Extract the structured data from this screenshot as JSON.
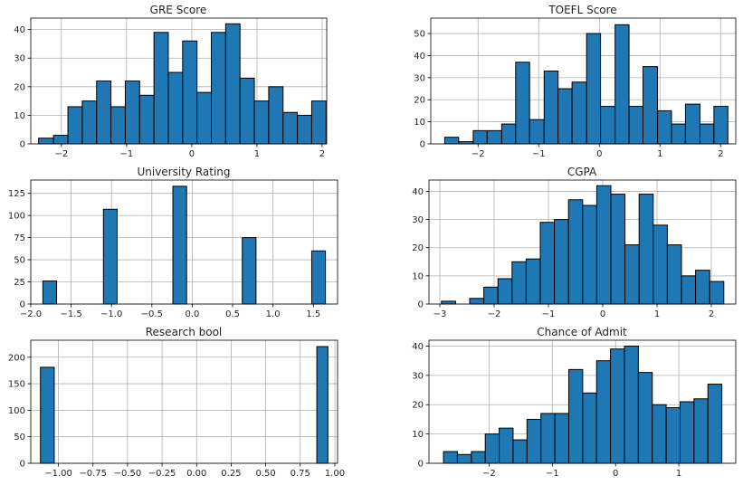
{
  "chart_data": [
    {
      "type": "bar",
      "title": "GRE Score",
      "bins": [
        [
          -2.35,
          -2.12
        ],
        [
          -2.12,
          -1.9
        ],
        [
          -1.9,
          -1.68
        ],
        [
          -1.68,
          -1.46
        ],
        [
          -1.46,
          -1.24
        ],
        [
          -1.24,
          -1.02
        ],
        [
          -1.02,
          -0.8
        ],
        [
          -0.8,
          -0.58
        ],
        [
          -0.58,
          -0.36
        ],
        [
          -0.36,
          -0.14
        ],
        [
          -0.14,
          0.08
        ],
        [
          0.08,
          0.3
        ],
        [
          0.3,
          0.52
        ],
        [
          0.52,
          0.74
        ],
        [
          0.74,
          0.96
        ],
        [
          0.96,
          1.18
        ],
        [
          1.18,
          1.4
        ],
        [
          1.4,
          1.62
        ],
        [
          1.62,
          1.84
        ],
        [
          1.84,
          2.06
        ]
      ],
      "values": [
        2,
        3,
        13,
        15,
        22,
        13,
        22,
        17,
        39,
        25,
        36,
        18,
        39,
        42,
        23,
        15,
        20,
        11,
        10,
        15
      ],
      "xlim": [
        -2.47,
        2.07
      ],
      "ylim": [
        0,
        44
      ],
      "xticks": [
        -2,
        -1,
        0,
        1,
        2
      ],
      "xtick_labels": [
        "−2",
        "−1",
        "0",
        "1",
        "2"
      ],
      "yticks": [
        0,
        10,
        20,
        30,
        40
      ],
      "grid": true,
      "color": "#1f77b4",
      "edgecolor": "#000000"
    },
    {
      "type": "bar",
      "title": "TOEFL Score",
      "bins": [
        [
          -2.55,
          -2.32
        ],
        [
          -2.32,
          -2.08
        ],
        [
          -2.08,
          -1.85
        ],
        [
          -1.85,
          -1.61
        ],
        [
          -1.61,
          -1.38
        ],
        [
          -1.38,
          -1.15
        ],
        [
          -1.15,
          -0.91
        ],
        [
          -0.91,
          -0.68
        ],
        [
          -0.68,
          -0.45
        ],
        [
          -0.45,
          -0.21
        ],
        [
          -0.21,
          0.02
        ],
        [
          0.02,
          0.26
        ],
        [
          0.26,
          0.49
        ],
        [
          0.49,
          0.72
        ],
        [
          0.72,
          0.96
        ],
        [
          0.96,
          1.19
        ],
        [
          1.19,
          1.42
        ],
        [
          1.42,
          1.66
        ],
        [
          1.66,
          1.89
        ],
        [
          1.89,
          2.12
        ]
      ],
      "values": [
        3,
        1,
        6,
        6,
        9,
        37,
        11,
        33,
        25,
        28,
        50,
        17,
        54,
        17,
        35,
        15,
        9,
        18,
        9,
        17
      ],
      "xlim": [
        -2.78,
        2.25
      ],
      "ylim": [
        0,
        57
      ],
      "xticks": [
        -2,
        -1,
        0,
        1,
        2
      ],
      "xtick_labels": [
        "−2",
        "−1",
        "0",
        "1",
        "2"
      ],
      "yticks": [
        0,
        10,
        20,
        30,
        40,
        50
      ],
      "grid": true,
      "color": "#1f77b4",
      "edgecolor": "#000000"
    },
    {
      "type": "bar",
      "title": "University Rating",
      "bins": [
        [
          -1.85,
          -1.68
        ],
        [
          -1.1,
          -0.93
        ],
        [
          -0.24,
          -0.07
        ],
        [
          0.62,
          0.79
        ],
        [
          1.48,
          1.65
        ]
      ],
      "values": [
        26,
        107,
        133,
        75,
        60
      ],
      "xlim": [
        -2.0,
        1.8
      ],
      "ylim": [
        0,
        140
      ],
      "xticks": [
        -2.0,
        -1.5,
        -1.0,
        -0.5,
        0.0,
        0.5,
        1.0,
        1.5
      ],
      "xtick_labels": [
        "−2.0",
        "−1.5",
        "−1.0",
        "−0.5",
        "0.0",
        "0.5",
        "1.0",
        "1.5"
      ],
      "yticks": [
        0,
        25,
        50,
        75,
        100,
        125
      ],
      "grid": true,
      "color": "#1f77b4",
      "edgecolor": "#000000"
    },
    {
      "type": "bar",
      "title": "CGPA",
      "bins": [
        [
          -2.97,
          -2.71
        ],
        [
          -2.71,
          -2.45
        ],
        [
          -2.45,
          -2.19
        ],
        [
          -2.19,
          -1.93
        ],
        [
          -1.93,
          -1.67
        ],
        [
          -1.67,
          -1.41
        ],
        [
          -1.41,
          -1.15
        ],
        [
          -1.15,
          -0.89
        ],
        [
          -0.89,
          -0.63
        ],
        [
          -0.63,
          -0.37
        ],
        [
          -0.37,
          -0.11
        ],
        [
          -0.11,
          0.15
        ],
        [
          0.15,
          0.41
        ],
        [
          0.41,
          0.67
        ],
        [
          0.67,
          0.93
        ],
        [
          0.93,
          1.19
        ],
        [
          1.19,
          1.45
        ],
        [
          1.45,
          1.71
        ],
        [
          1.71,
          1.97
        ],
        [
          1.97,
          2.23
        ]
      ],
      "values": [
        1,
        0,
        2,
        6,
        9,
        15,
        16,
        29,
        30,
        37,
        35,
        42,
        39,
        21,
        39,
        28,
        21,
        10,
        12,
        8
      ],
      "xlim": [
        -3.2,
        2.45
      ],
      "ylim": [
        0,
        44
      ],
      "xticks": [
        -3,
        -2,
        -1,
        0,
        1,
        2
      ],
      "xtick_labels": [
        "−3",
        "−2",
        "−1",
        "0",
        "1",
        "2"
      ],
      "yticks": [
        0,
        10,
        20,
        30,
        40
      ],
      "grid": true,
      "color": "#1f77b4",
      "edgecolor": "#000000"
    },
    {
      "type": "bar",
      "title": "Research bool",
      "bins": [
        [
          -1.13,
          -1.03
        ],
        [
          0.87,
          0.95
        ]
      ],
      "values": [
        181,
        220
      ],
      "xlim": [
        -1.2,
        1.02
      ],
      "ylim": [
        0,
        232
      ],
      "xticks": [
        -1.0,
        -0.75,
        -0.5,
        -0.25,
        0.0,
        0.25,
        0.5,
        0.75,
        1.0
      ],
      "xtick_labels": [
        "−1.00",
        "−0.75",
        "−0.50",
        "−0.25",
        "0.00",
        "0.25",
        "0.50",
        "0.75",
        "1.00"
      ],
      "yticks": [
        0,
        50,
        100,
        150,
        200
      ],
      "grid": true,
      "color": "#1f77b4",
      "edgecolor": "#000000"
    },
    {
      "type": "bar",
      "title": "Chance of Admit",
      "bins": [
        [
          -2.72,
          -2.5
        ],
        [
          -2.5,
          -2.28
        ],
        [
          -2.28,
          -2.06
        ],
        [
          -2.06,
          -1.84
        ],
        [
          -1.84,
          -1.62
        ],
        [
          -1.62,
          -1.4
        ],
        [
          -1.4,
          -1.18
        ],
        [
          -1.18,
          -0.96
        ],
        [
          -0.96,
          -0.74
        ],
        [
          -0.74,
          -0.52
        ],
        [
          -0.52,
          -0.3
        ],
        [
          -0.3,
          -0.08
        ],
        [
          -0.08,
          0.14
        ],
        [
          0.14,
          0.36
        ],
        [
          0.36,
          0.58
        ],
        [
          0.58,
          0.8
        ],
        [
          0.8,
          1.02
        ],
        [
          1.02,
          1.24
        ],
        [
          1.24,
          1.46
        ],
        [
          1.46,
          1.68
        ]
      ],
      "values": [
        4,
        3,
        4,
        10,
        12,
        8,
        15,
        17,
        17,
        32,
        24,
        35,
        39,
        40,
        31,
        20,
        19,
        21,
        22,
        27
      ],
      "xlim": [
        -2.95,
        1.9
      ],
      "ylim": [
        0,
        42
      ],
      "xticks": [
        -2,
        -1,
        0,
        1
      ],
      "xtick_labels": [
        "−2",
        "−1",
        "0",
        "1"
      ],
      "yticks": [
        0,
        10,
        20,
        30,
        40
      ],
      "grid": true,
      "color": "#1f77b4",
      "edgecolor": "#000000"
    }
  ]
}
